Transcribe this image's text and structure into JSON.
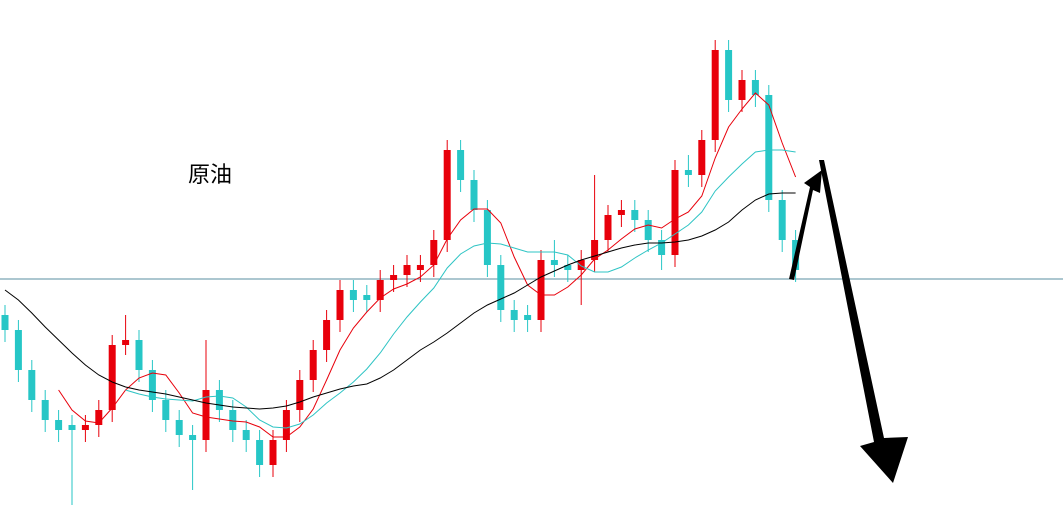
{
  "chart_data": {
    "type": "candlestick",
    "title": "原油",
    "ylim": [
      0,
      525
    ],
    "reference_line": 246,
    "up_color": "#e8000b",
    "down_color": "#26c6c6",
    "open": [
      210,
      195,
      155,
      125,
      105,
      100,
      95,
      100,
      115,
      180,
      185,
      155,
      125,
      105,
      90,
      85,
      135,
      115,
      95,
      85,
      60,
      85,
      115,
      145,
      175,
      205,
      235,
      230,
      225,
      245,
      250,
      255,
      260,
      285,
      375,
      345,
      315,
      260,
      215,
      210,
      205,
      265,
      260,
      255,
      265,
      285,
      310,
      315,
      305,
      285,
      270,
      355,
      350,
      385,
      475,
      425,
      445,
      430,
      325,
      285
    ],
    "high": [
      220,
      205,
      165,
      135,
      115,
      110,
      110,
      125,
      190,
      210,
      195,
      165,
      135,
      115,
      100,
      185,
      145,
      125,
      105,
      95,
      95,
      125,
      155,
      185,
      215,
      245,
      245,
      240,
      255,
      260,
      270,
      270,
      295,
      385,
      385,
      355,
      325,
      270,
      225,
      220,
      275,
      285,
      270,
      275,
      350,
      320,
      325,
      325,
      315,
      295,
      365,
      370,
      395,
      485,
      485,
      455,
      455,
      440,
      335,
      295
    ],
    "low": [
      183,
      143,
      113,
      93,
      83,
      20,
      83,
      88,
      103,
      170,
      143,
      113,
      93,
      78,
      35,
      73,
      103,
      83,
      73,
      48,
      48,
      73,
      103,
      133,
      163,
      193,
      213,
      213,
      213,
      233,
      238,
      243,
      248,
      273,
      333,
      303,
      248,
      203,
      193,
      193,
      193,
      248,
      243,
      220,
      253,
      273,
      298,
      293,
      273,
      255,
      258,
      338,
      338,
      373,
      413,
      413,
      418,
      313,
      273,
      243
    ],
    "close": [
      195,
      155,
      125,
      105,
      95,
      95,
      100,
      115,
      180,
      185,
      155,
      125,
      105,
      90,
      85,
      135,
      115,
      95,
      85,
      60,
      85,
      115,
      145,
      175,
      205,
      235,
      225,
      225,
      245,
      250,
      260,
      260,
      285,
      375,
      345,
      315,
      260,
      215,
      205,
      205,
      265,
      260,
      255,
      265,
      285,
      310,
      315,
      305,
      285,
      270,
      355,
      350,
      385,
      475,
      425,
      445,
      430,
      325,
      285,
      255
    ],
    "series": [
      {
        "color": "#e8000b",
        "values": [
          null,
          null,
          null,
          null,
          135,
          115,
          104,
          102,
          117,
          135,
          147,
          152,
          150,
          132,
          112,
          108,
          106,
          104,
          103,
          98,
          88,
          88,
          98,
          116,
          145,
          175,
          197,
          213,
          227,
          236,
          241,
          248,
          260,
          286,
          305,
          316,
          316,
          302,
          268,
          240,
          230,
          230,
          238,
          250,
          266,
          275,
          286,
          296,
          300,
          297,
          306,
          313,
          329,
          367,
          398,
          416,
          432,
          420,
          382,
          348
        ]
      },
      {
        "color": "#2ec4c4",
        "values": [
          null,
          null,
          null,
          null,
          null,
          null,
          null,
          null,
          null,
          135,
          131,
          128,
          126,
          125,
          124,
          128,
          129,
          127,
          118,
          105,
          98,
          97,
          101,
          110,
          122,
          132,
          143,
          156,
          172,
          191,
          208,
          223,
          237,
          257,
          271,
          279,
          282,
          281,
          277,
          273,
          273,
          273,
          270,
          259,
          253,
          253,
          258,
          267,
          275,
          282,
          291,
          300,
          313,
          334,
          348,
          361,
          373,
          375,
          375,
          373
        ]
      },
      {
        "color": "#000000",
        "values": [
          235,
          225,
          212,
          198,
          185,
          172,
          160,
          150,
          143,
          138,
          135,
          133,
          131,
          128,
          125,
          122,
          120,
          118,
          117,
          116,
          117,
          119,
          123,
          128,
          132,
          136,
          139,
          141,
          147,
          155,
          165,
          175,
          183,
          192,
          202,
          212,
          220,
          226,
          232,
          240,
          248,
          254,
          260,
          265,
          269,
          273,
          277,
          280,
          282,
          282,
          283,
          285,
          289,
          295,
          303,
          315,
          325,
          331,
          332,
          332
        ]
      }
    ]
  }
}
